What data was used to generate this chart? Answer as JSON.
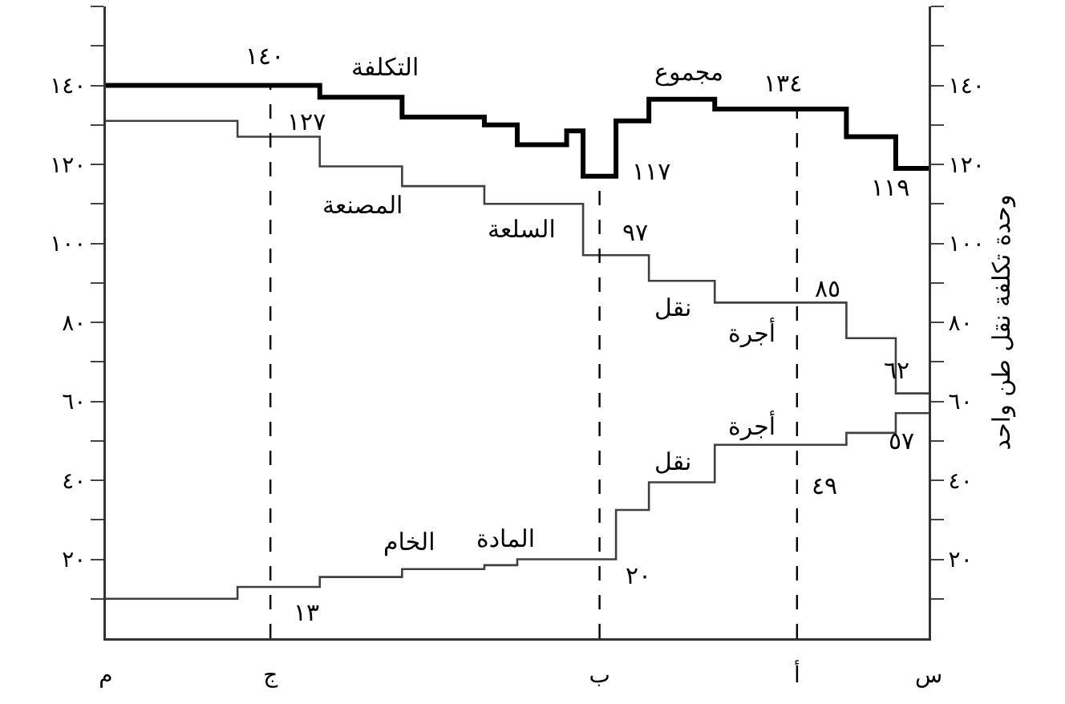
{
  "chart_data": {
    "type": "step",
    "y2label": "وحدة تكلفة نقل طن واحد",
    "categories": [
      "م",
      null,
      null,
      null,
      null,
      null,
      null,
      null,
      null,
      null,
      "ج",
      null,
      null,
      null,
      null,
      null,
      null,
      null,
      null,
      null,
      null,
      null,
      null,
      null,
      null,
      null,
      null,
      null,
      null,
      null,
      "ب",
      null,
      null,
      null,
      null,
      null,
      null,
      null,
      null,
      null,
      null,
      null,
      "أ",
      null,
      null,
      null,
      null,
      null,
      null,
      null,
      "س"
    ],
    "series": [
      {
        "color": "#000000",
        "values": [
          140,
          140,
          140,
          140,
          140,
          140,
          140,
          140,
          140,
          140,
          140,
          140,
          140,
          137,
          137,
          137,
          137,
          137,
          132,
          132,
          132,
          132,
          132,
          130,
          130,
          125,
          125,
          125,
          128.5,
          117,
          117,
          131,
          131,
          136.5,
          136.5,
          136.5,
          136.5,
          134,
          134,
          134,
          134,
          134,
          134,
          134,
          134,
          127,
          127,
          127,
          119,
          119,
          119
        ]
      },
      {
        "color": "#404040",
        "values": [
          131,
          131,
          131,
          131,
          131,
          131,
          131,
          131,
          127,
          127,
          127,
          127,
          127,
          119.5,
          119.5,
          119.5,
          119.5,
          119.5,
          114.5,
          114.5,
          114.5,
          114.5,
          114.5,
          110,
          110,
          110,
          110,
          110,
          110,
          97,
          97,
          97,
          97,
          90.5,
          90.5,
          90.5,
          90.5,
          85,
          85,
          85,
          85,
          85,
          85,
          85,
          85,
          76,
          76,
          76,
          62,
          62,
          62
        ]
      },
      {
        "color": "#404040",
        "values": [
          10,
          10,
          10,
          10,
          10,
          10,
          10,
          10,
          13,
          13,
          13,
          13,
          13,
          15.5,
          15.5,
          15.5,
          15.5,
          15.5,
          17.5,
          17.5,
          17.5,
          17.5,
          17.5,
          18.5,
          18.5,
          20,
          20,
          20,
          20,
          20,
          20,
          32.5,
          32.5,
          39.5,
          39.5,
          39.5,
          39.5,
          49,
          49,
          49,
          49,
          49,
          49,
          49,
          49,
          52,
          52,
          52,
          57,
          57,
          57
        ]
      }
    ],
    "ylim": [
      0,
      160
    ],
    "yticks": [
      {
        "value": 10,
        "label": null
      },
      {
        "value": 20,
        "label": "٢٠"
      },
      {
        "value": 30,
        "label": null
      },
      {
        "value": 40,
        "label": "٤٠"
      },
      {
        "value": 50,
        "label": null
      },
      {
        "value": 60,
        "label": "٦٠"
      },
      {
        "value": 70,
        "label": null
      },
      {
        "value": 80,
        "label": "٨٠"
      },
      {
        "value": 90,
        "label": null
      },
      {
        "value": 100,
        "label": "١٠٠"
      },
      {
        "value": 110,
        "label": null
      },
      {
        "value": 120,
        "label": "١٢٠"
      },
      {
        "value": 130,
        "label": null
      },
      {
        "value": 140,
        "label": "١٤٠"
      },
      {
        "value": 150,
        "label": null
      },
      {
        "value": 160,
        "label": null
      }
    ],
    "y2lim": [
      0,
      160
    ],
    "y2ticks": [
      {
        "value": 10,
        "label": null
      },
      {
        "value": 20,
        "label": "٢٠"
      },
      {
        "value": 30,
        "label": null
      },
      {
        "value": 40,
        "label": "٤٠"
      },
      {
        "value": 50,
        "label": null
      },
      {
        "value": 60,
        "label": "٦٠"
      },
      {
        "value": 70,
        "label": null
      },
      {
        "value": 80,
        "label": "٨٠"
      },
      {
        "value": 90,
        "label": null
      },
      {
        "value": 100,
        "label": "١٠٠"
      },
      {
        "value": 110,
        "label": null
      },
      {
        "value": 120,
        "label": "١٢٠"
      },
      {
        "value": 130,
        "label": null
      },
      {
        "value": 140,
        "label": "١٤٠"
      },
      {
        "value": 150,
        "label": null
      },
      {
        "value": 160,
        "label": null
      }
    ],
    "ref_lines": [
      {
        "axis": "x",
        "value": "ج",
        "line_style": "dashed",
        "color": "#000000"
      },
      {
        "axis": "x",
        "value": "ب",
        "line_style": "dashed",
        "color": "#000000"
      },
      {
        "axis": "x",
        "value": "أ",
        "line_style": "dashed",
        "color": "#000000"
      }
    ],
    "annotations": [
      {
        "text": "١٤٠",
        "x": "ج",
        "y": 140
      },
      "التكلفة",
      {
        "text": "١٢٧",
        "x": "ج",
        "y": 127
      },
      "المصنعة",
      "السلعة",
      {
        "text": "٩٧",
        "x": "ب",
        "y": 97
      },
      {
        "text": "١١٧",
        "x": "ب",
        "y": 117
      },
      "مجموع",
      {
        "text": "١٣٤",
        "x": "أ",
        "y": 134
      },
      {
        "text": "١١٩",
        "x": "س",
        "y": 119
      },
      {
        "text": "٨٥",
        "x": "أ",
        "y": 85
      },
      "نقل",
      "أجرة",
      {
        "text": "٦٢",
        "x": "س",
        "y": 62
      },
      "أجرة",
      "نقل",
      {
        "text": "٤٩",
        "x": "أ",
        "y": 49
      },
      {
        "text": "٥٧",
        "x": "س",
        "y": 57
      },
      {
        "text": "٢٠",
        "x": "ب",
        "y": 20
      },
      "المادة",
      "الخام",
      {
        "text": "١٣",
        "x": "ج",
        "y": 13
      }
    ],
    "grid": false
  }
}
